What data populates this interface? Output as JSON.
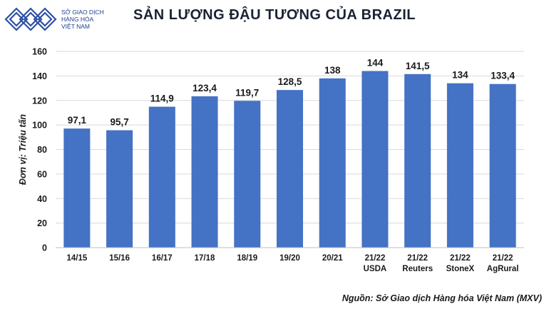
{
  "logo": {
    "line1": "SỞ GIAO DỊCH",
    "line2": "HÀNG HÓA",
    "line3": "VIỆT NAM"
  },
  "header": {
    "title": "SẢN LƯỢNG ĐẬU TƯƠNG CỦA BRAZIL"
  },
  "footer": {
    "source": "Nguồn: Sở Giao dịch Hàng hóa Việt Nam (MXV)"
  },
  "chart_data": {
    "type": "bar",
    "categories": [
      [
        "14/15"
      ],
      [
        "15/16"
      ],
      [
        "16/17"
      ],
      [
        "17/18"
      ],
      [
        "18/19"
      ],
      [
        "19/20"
      ],
      [
        "20/21"
      ],
      [
        "21/22",
        "USDA"
      ],
      [
        "21/22",
        "Reuters"
      ],
      [
        "21/22",
        "StoneX"
      ],
      [
        "21/22",
        "AgRural"
      ]
    ],
    "values": [
      97.1,
      95.7,
      114.9,
      123.4,
      119.7,
      128.5,
      138,
      144,
      141.5,
      134,
      133.4
    ],
    "data_labels": [
      "97,1",
      "95,7",
      "114,9",
      "123,4",
      "119,7",
      "128,5",
      "138",
      "144",
      "141,5",
      "134",
      "133,4"
    ],
    "ylabel": "Đơn vị: Triệu tấn",
    "ylim": [
      0,
      160
    ],
    "yticks": [
      0,
      20,
      40,
      60,
      80,
      100,
      120,
      140,
      160
    ],
    "grid": true,
    "bar_color": "#4472c4",
    "grid_color": "#d9d9d9"
  }
}
